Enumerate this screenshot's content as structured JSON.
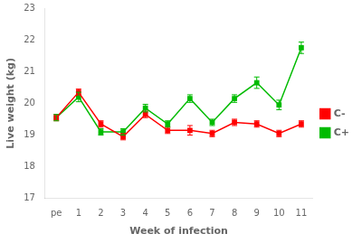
{
  "chart_data": {
    "type": "line",
    "categories": [
      "pe",
      "1",
      "2",
      "3",
      "4",
      "5",
      "6",
      "7",
      "8",
      "9",
      "10",
      "11"
    ],
    "series": [
      {
        "name": "C-",
        "color": "#ff0000",
        "marker": "square",
        "values": [
          19.55,
          20.35,
          19.35,
          18.95,
          19.65,
          19.15,
          19.15,
          19.05,
          19.4,
          19.35,
          19.05,
          19.35
        ],
        "errors": [
          0.1,
          0.1,
          0.1,
          0.1,
          0.1,
          0.1,
          0.15,
          0.1,
          0.1,
          0.1,
          0.1,
          0.1
        ]
      },
      {
        "name": "C+",
        "color": "#00bb00",
        "marker": "square",
        "values": [
          19.55,
          20.2,
          19.1,
          19.1,
          19.85,
          19.35,
          20.15,
          19.4,
          20.15,
          20.65,
          19.95,
          21.75
        ],
        "errors": [
          0.1,
          0.15,
          0.1,
          0.1,
          0.12,
          0.1,
          0.12,
          0.1,
          0.12,
          0.18,
          0.15,
          0.18
        ]
      }
    ],
    "xlabel": "Week of infection",
    "ylabel": "Live weight (kg)",
    "ylim": [
      17,
      23
    ],
    "yticks": [
      17,
      18,
      19,
      20,
      21,
      22,
      23
    ],
    "grid": false,
    "legend": "right"
  }
}
